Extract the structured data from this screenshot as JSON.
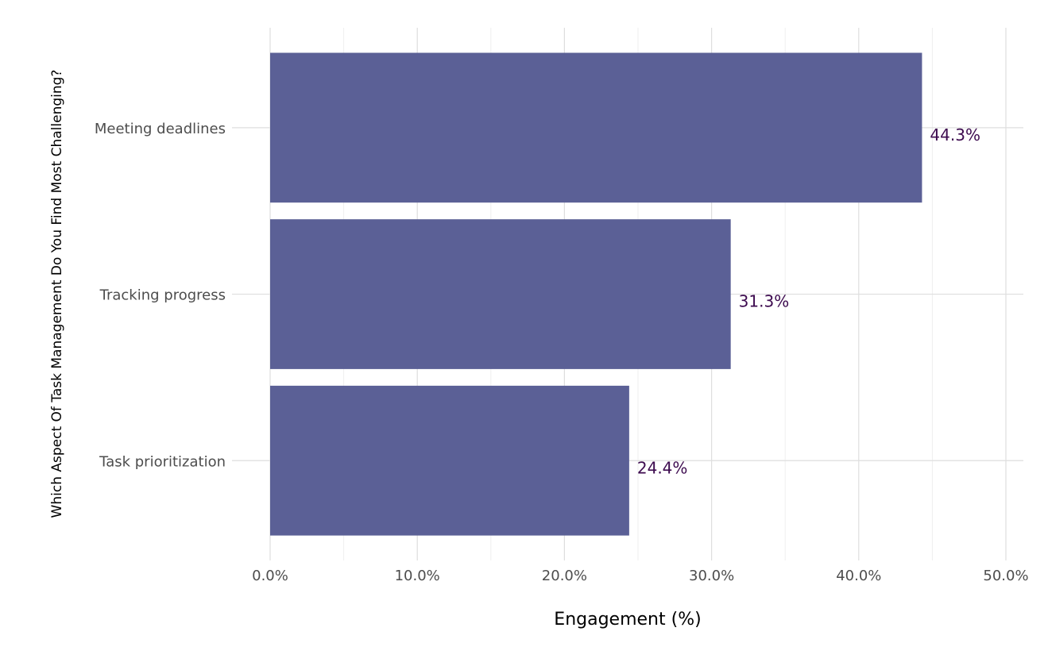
{
  "chart_data": {
    "type": "bar",
    "orientation": "horizontal",
    "categories": [
      "Task prioritization",
      "Tracking progress",
      "Meeting deadlines"
    ],
    "values": [
      24.4,
      31.3,
      44.3
    ],
    "value_labels": [
      "24.4%",
      "31.3%",
      "44.3%"
    ],
    "xlabel": "Engagement (%)",
    "ylabel": "Which Aspect Of Task Management Do You Find Most Challenging?",
    "xlim": [
      0,
      51.5
    ],
    "x_ticks": [
      0,
      10,
      20,
      30,
      40,
      50
    ],
    "x_tick_labels": [
      "0.0%",
      "10.0%",
      "20.0%",
      "30.0%",
      "40.0%",
      "50.0%"
    ],
    "grid": true,
    "legend": "none"
  },
  "colors": {
    "bar": "#5b6096",
    "data_label": "#3d0b4f",
    "grid_major": "#dedede",
    "grid_minor": "#efefef"
  }
}
